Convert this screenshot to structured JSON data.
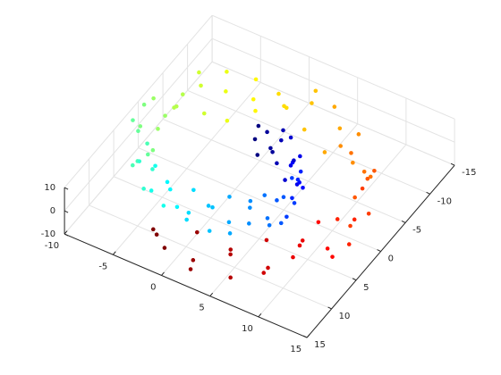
{
  "chart_data": {
    "type": "scatter3",
    "colormap": "jet",
    "grid": true,
    "xlim": [
      -10,
      15
    ],
    "ylim": [
      -15,
      15
    ],
    "zlim": [
      -10,
      10
    ],
    "xticks": [
      -10,
      -5,
      0,
      5,
      10,
      15
    ],
    "yticks": [
      -15,
      -10,
      -5,
      0,
      5,
      10,
      15
    ],
    "zticks": [
      -10,
      0,
      10
    ],
    "x": [
      -0.1,
      1.2,
      2.4,
      3.7,
      4.8,
      5.6,
      6.2,
      6.4,
      6.1,
      5.5,
      4.4,
      2.9,
      1.2,
      -0.8,
      -2.8,
      -4.7,
      -6.5,
      -8.0,
      -9.0,
      -9.5,
      -9.3,
      -8.6,
      -7.2,
      -5.4,
      -3.1,
      -0.5,
      2.3,
      5.0,
      7.6,
      9.8,
      11.4,
      12.4,
      12.6,
      12.0,
      10.6,
      8.5,
      5.8,
      2.6,
      -0.9,
      -0.1,
      1.1,
      2.2,
      3.3,
      4.3,
      5.0,
      5.6,
      5.8,
      5.5,
      5.0,
      4.0,
      2.6,
      1.1,
      -0.7,
      -2.5,
      -4.2,
      -5.9,
      -7.2,
      -8.1,
      -8.6,
      -8.4,
      -7.7,
      -6.5,
      -4.9,
      -2.8,
      -0.5,
      2.1,
      4.5,
      6.8,
      8.8,
      10.3,
      11.2,
      11.3,
      10.8,
      9.5,
      7.7,
      5.2,
      2.3,
      -0.8,
      -0.1,
      1.3,
      2.5,
      3.9,
      5.0,
      5.9,
      6.5,
      6.7,
      6.4,
      5.8,
      4.6,
      3.0,
      1.3,
      -0.8,
      -2.9,
      -4.9,
      -6.8,
      -8.4,
      -9.5,
      -9.9,
      -9.8,
      -9.0,
      -7.6,
      -5.7,
      -3.3,
      -0.5,
      2.4,
      5.3,
      8.0,
      10.3,
      12.0,
      13.0,
      13.2,
      12.6,
      11.1,
      8.9,
      6.1,
      2.7,
      -0.9
    ],
    "y": [
      -4.7,
      -4.8,
      -4.6,
      -4.0,
      -3.1,
      -2.0,
      -0.5,
      1.1,
      2.7,
      4.3,
      5.7,
      6.9,
      7.6,
      7.9,
      7.7,
      7.0,
      5.8,
      4.1,
      2.0,
      -0.2,
      -2.6,
      -5.0,
      -7.2,
      -8.9,
      -10.2,
      -10.9,
      -11.0,
      -10.3,
      -8.9,
      -6.9,
      -4.4,
      -1.4,
      1.7,
      4.9,
      7.8,
      10.4,
      12.4,
      13.7,
      14.2,
      -4.2,
      -4.3,
      -4.1,
      -3.6,
      -2.8,
      -1.8,
      -0.5,
      1.0,
      2.4,
      3.9,
      5.1,
      6.2,
      6.8,
      7.1,
      6.9,
      6.3,
      5.2,
      3.7,
      1.8,
      -0.2,
      -2.3,
      -4.5,
      -6.5,
      -8.0,
      -9.2,
      -9.8,
      -9.9,
      -9.3,
      -8.0,
      -6.2,
      -4.0,
      -1.3,
      1.5,
      4.4,
      7.0,
      9.4,
      11.2,
      12.3,
      12.8,
      -4.9,
      -5.0,
      -4.8,
      -4.2,
      -3.3,
      -2.1,
      -0.5,
      1.2,
      2.8,
      4.5,
      6.0,
      7.2,
      8.0,
      8.3,
      8.1,
      7.4,
      6.1,
      4.3,
      2.1,
      -0.2,
      -2.7,
      -5.3,
      -7.6,
      -9.3,
      -10.7,
      -11.4,
      -11.6,
      -10.8,
      -9.3,
      -7.2,
      -4.6,
      -1.5,
      1.8,
      5.1,
      8.2,
      10.9,
      13.0,
      14.4,
      14.9
    ],
    "z": [
      -7,
      -2,
      4,
      9,
      -7,
      -2,
      4,
      9,
      -7,
      -2,
      4,
      9,
      -7,
      -2,
      4,
      9,
      -7,
      -2,
      4,
      9,
      -7,
      -2,
      4,
      9,
      -7,
      -2,
      4,
      9,
      -7,
      -2,
      4,
      9,
      -7,
      -2,
      4,
      9,
      -7,
      -2,
      4,
      1,
      6,
      -5,
      -9,
      1,
      6,
      -5,
      -9,
      1,
      6,
      -5,
      -9,
      1,
      6,
      -5,
      -9,
      1,
      6,
      -5,
      -9,
      1,
      6,
      -5,
      -9,
      1,
      6,
      -5,
      -9,
      1,
      6,
      -5,
      -9,
      1,
      6,
      -5,
      -9,
      1,
      6,
      -5,
      5,
      -4,
      8,
      -1,
      5,
      -4,
      8,
      -1,
      5,
      -4,
      8,
      -1,
      5,
      -4,
      8,
      -1,
      5,
      -4,
      8,
      -1,
      5,
      -4,
      8,
      -1,
      5,
      -4,
      8,
      -1,
      5,
      -4,
      8,
      -1,
      5,
      -4,
      8,
      -1,
      5,
      -4,
      8
    ],
    "c": [
      4.7,
      4.95,
      5.2,
      5.45,
      5.7,
      5.95,
      6.2,
      6.45,
      6.7,
      6.95,
      7.2,
      7.45,
      7.7,
      7.95,
      8.2,
      8.45,
      8.7,
      8.95,
      9.2,
      9.45,
      9.7,
      9.95,
      10.2,
      10.45,
      10.7,
      10.95,
      11.2,
      11.45,
      11.7,
      11.95,
      12.2,
      12.45,
      12.7,
      12.95,
      13.2,
      13.45,
      13.7,
      13.95,
      14.2,
      4.7,
      4.95,
      5.2,
      5.45,
      5.7,
      5.95,
      6.2,
      6.45,
      6.7,
      6.95,
      7.2,
      7.45,
      7.7,
      7.95,
      8.2,
      8.45,
      8.7,
      8.95,
      9.2,
      9.45,
      9.7,
      9.95,
      10.2,
      10.45,
      10.7,
      10.95,
      11.2,
      11.45,
      11.7,
      11.95,
      12.2,
      12.45,
      12.7,
      12.95,
      13.2,
      13.45,
      13.7,
      13.95,
      14.2,
      4.7,
      4.95,
      5.2,
      5.45,
      5.7,
      5.95,
      6.2,
      6.45,
      6.7,
      6.95,
      7.2,
      7.45,
      7.7,
      7.95,
      8.2,
      8.45,
      8.7,
      8.95,
      9.2,
      9.45,
      9.7,
      9.95,
      10.2,
      10.45,
      10.7,
      10.95,
      11.2,
      11.45,
      11.7,
      11.95,
      12.2,
      12.45,
      12.7,
      12.95,
      13.2,
      13.45,
      13.7,
      13.95,
      14.2
    ]
  }
}
